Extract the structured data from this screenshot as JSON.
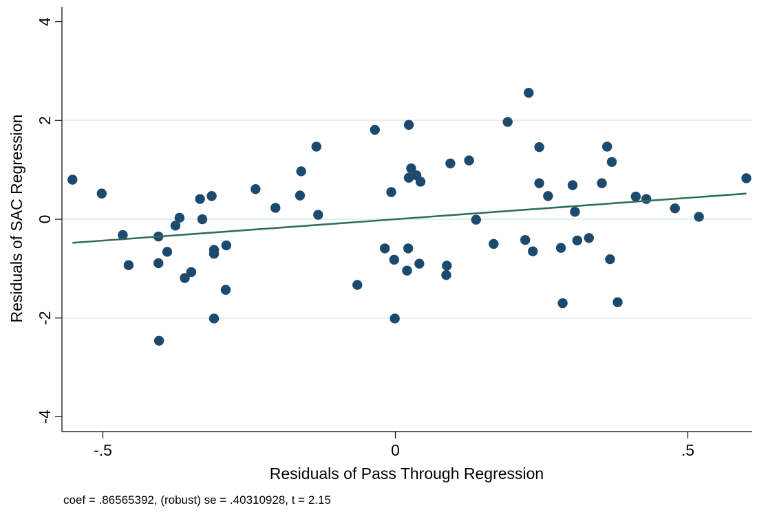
{
  "chart_data": {
    "type": "scatter",
    "title": "",
    "xlabel": "Residuals of Pass Through Regression",
    "ylabel": "Residuals of SAC Regression",
    "xlim": [
      -0.57,
      0.61
    ],
    "ylim": [
      -4.3,
      4.3
    ],
    "xticks": [
      {
        "value": -0.5,
        "label": "-.5"
      },
      {
        "value": 0,
        "label": "0"
      },
      {
        "value": 0.5,
        "label": ".5"
      }
    ],
    "yticks": [
      {
        "value": -4,
        "label": "-4"
      },
      {
        "value": -2,
        "label": "-2"
      },
      {
        "value": 0,
        "label": "0"
      },
      {
        "value": 2,
        "label": "2"
      },
      {
        "value": 4,
        "label": "4"
      }
    ],
    "grid": "horizontal",
    "colors": {
      "points": "#1c4a6e",
      "fit_line": "#2e6e5e",
      "grid": "#e3ecf0"
    },
    "points": [
      {
        "x": -0.552,
        "y": 0.8
      },
      {
        "x": -0.502,
        "y": 0.52
      },
      {
        "x": -0.466,
        "y": -0.32
      },
      {
        "x": -0.456,
        "y": -0.93
      },
      {
        "x": -0.405,
        "y": -0.35
      },
      {
        "x": -0.405,
        "y": -0.89
      },
      {
        "x": -0.404,
        "y": -2.46
      },
      {
        "x": -0.39,
        "y": -0.66
      },
      {
        "x": -0.376,
        "y": -0.13
      },
      {
        "x": -0.369,
        "y": 0.03
      },
      {
        "x": -0.36,
        "y": -1.19
      },
      {
        "x": -0.349,
        "y": -1.07
      },
      {
        "x": -0.334,
        "y": 0.41
      },
      {
        "x": -0.33,
        "y": 0.0
      },
      {
        "x": -0.314,
        "y": 0.47
      },
      {
        "x": -0.31,
        "y": -0.62
      },
      {
        "x": -0.31,
        "y": -0.7
      },
      {
        "x": -0.31,
        "y": -2.01
      },
      {
        "x": -0.289,
        "y": -0.53
      },
      {
        "x": -0.29,
        "y": -1.43
      },
      {
        "x": -0.239,
        "y": 0.61
      },
      {
        "x": -0.205,
        "y": 0.23
      },
      {
        "x": -0.163,
        "y": 0.48
      },
      {
        "x": -0.161,
        "y": 0.97
      },
      {
        "x": -0.135,
        "y": 1.47
      },
      {
        "x": -0.132,
        "y": 0.09
      },
      {
        "x": -0.065,
        "y": -1.33
      },
      {
        "x": -0.035,
        "y": 1.81
      },
      {
        "x": -0.018,
        "y": -0.59
      },
      {
        "x": -0.007,
        "y": 0.55
      },
      {
        "x": -0.002,
        "y": -0.82
      },
      {
        "x": -0.001,
        "y": -2.01
      },
      {
        "x": 0.02,
        "y": -1.04
      },
      {
        "x": 0.022,
        "y": -0.59
      },
      {
        "x": 0.023,
        "y": 1.91
      },
      {
        "x": 0.023,
        "y": 0.84
      },
      {
        "x": 0.027,
        "y": 1.03
      },
      {
        "x": 0.036,
        "y": 0.89
      },
      {
        "x": 0.041,
        "y": -0.9
      },
      {
        "x": 0.043,
        "y": 0.76
      },
      {
        "x": 0.087,
        "y": -1.13
      },
      {
        "x": 0.088,
        "y": -0.94
      },
      {
        "x": 0.094,
        "y": 1.13
      },
      {
        "x": 0.126,
        "y": 1.19
      },
      {
        "x": 0.138,
        "y": -0.01
      },
      {
        "x": 0.168,
        "y": -0.5
      },
      {
        "x": 0.192,
        "y": 1.97
      },
      {
        "x": 0.222,
        "y": -0.42
      },
      {
        "x": 0.228,
        "y": 2.56
      },
      {
        "x": 0.235,
        "y": -0.65
      },
      {
        "x": 0.246,
        "y": 1.46
      },
      {
        "x": 0.246,
        "y": 0.73
      },
      {
        "x": 0.261,
        "y": 0.47
      },
      {
        "x": 0.283,
        "y": -0.58
      },
      {
        "x": 0.286,
        "y": -1.7
      },
      {
        "x": 0.303,
        "y": 0.69
      },
      {
        "x": 0.307,
        "y": 0.15
      },
      {
        "x": 0.311,
        "y": -0.43
      },
      {
        "x": 0.331,
        "y": -0.38
      },
      {
        "x": 0.353,
        "y": 0.73
      },
      {
        "x": 0.362,
        "y": 1.47
      },
      {
        "x": 0.367,
        "y": -0.81
      },
      {
        "x": 0.37,
        "y": 1.16
      },
      {
        "x": 0.38,
        "y": -1.68
      },
      {
        "x": 0.411,
        "y": 0.46
      },
      {
        "x": 0.429,
        "y": 0.41
      },
      {
        "x": 0.478,
        "y": 0.22
      },
      {
        "x": 0.519,
        "y": 0.05
      },
      {
        "x": 0.6,
        "y": 0.83
      }
    ],
    "fit_line": {
      "slope": 0.86565392,
      "intercept": 0.0
    }
  },
  "note": "coef = .86565392, (robust) se = .40310928, t = 2.15"
}
